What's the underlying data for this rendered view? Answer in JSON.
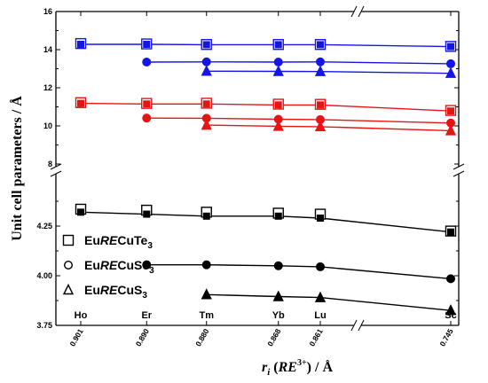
{
  "chart_data": {
    "type": "line",
    "xlabel_parts": {
      "r": "r",
      "i": "i",
      "open": " (",
      "re": "RE",
      "charge": "3+",
      "close": ") / Å"
    },
    "ylabel": "Unit cell parameters / Å",
    "x_ticks": [
      "0.901",
      "0.890",
      "0.880",
      "0.868",
      "0.861",
      "0.745"
    ],
    "x_values": [
      0.901,
      0.89,
      0.88,
      0.868,
      0.861,
      0.745
    ],
    "categories": [
      "Ho",
      "Er",
      "Tm",
      "Yb",
      "Lu",
      "Sc"
    ],
    "x_axis_break": "between 0.861 and 0.745",
    "upper_panel": {
      "ylim": [
        8,
        16
      ],
      "y_ticks": [
        "8",
        "10",
        "12",
        "14",
        "16"
      ],
      "y_tick_values": [
        8,
        10,
        12,
        14,
        16
      ]
    },
    "lower_panel": {
      "ylim": [
        3.75,
        4.4
      ],
      "y_ticks": [
        "3.75",
        "4.00",
        "4.25"
      ],
      "y_tick_values": [
        3.75,
        4.0,
        4.25
      ]
    },
    "legend": {
      "items": [
        {
          "marker": "square",
          "prefix": "Eu",
          "re": "RE",
          "rest": "CuTe",
          "sub": "3"
        },
        {
          "marker": "circle",
          "prefix": "Eu",
          "re": "RE",
          "rest": "CuSe",
          "sub": "3"
        },
        {
          "marker": "triangle",
          "prefix": "Eu",
          "re": "RE",
          "rest": "CuS",
          "sub": "3"
        }
      ]
    },
    "colors": {
      "blue": "#1515e6",
      "red": "#e61515",
      "black": "#000000"
    },
    "series": [
      {
        "panel": "upper",
        "color": "blue",
        "marker": "square",
        "points": [
          [
            0.901,
            14.28,
            14.32
          ],
          [
            0.89,
            14.28,
            14.3
          ],
          [
            0.88,
            14.26,
            14.27
          ],
          [
            0.868,
            14.26,
            14.27
          ],
          [
            0.861,
            14.26,
            14.27
          ],
          [
            0.745,
            14.16,
            14.17
          ]
        ]
      },
      {
        "panel": "upper",
        "color": "blue",
        "marker": "circle",
        "points": [
          [
            0.89,
            13.35
          ],
          [
            0.88,
            13.36
          ],
          [
            0.868,
            13.35
          ],
          [
            0.861,
            13.36
          ],
          [
            0.745,
            13.26
          ]
        ]
      },
      {
        "panel": "upper",
        "color": "blue",
        "marker": "triangle",
        "points": [
          [
            0.88,
            12.87
          ],
          [
            0.868,
            12.86
          ],
          [
            0.861,
            12.85
          ],
          [
            0.745,
            12.76
          ]
        ]
      },
      {
        "panel": "upper",
        "color": "red",
        "marker": "square",
        "points": [
          [
            0.901,
            11.18,
            11.22
          ],
          [
            0.89,
            11.15,
            11.18
          ],
          [
            0.88,
            11.15,
            11.19
          ],
          [
            0.868,
            11.1,
            11.14
          ],
          [
            0.861,
            11.1,
            11.13
          ],
          [
            0.745,
            10.78,
            10.81
          ]
        ]
      },
      {
        "panel": "upper",
        "color": "red",
        "marker": "circle",
        "points": [
          [
            0.89,
            10.41
          ],
          [
            0.88,
            10.4
          ],
          [
            0.868,
            10.35
          ],
          [
            0.861,
            10.33
          ],
          [
            0.745,
            10.15
          ]
        ]
      },
      {
        "panel": "upper",
        "color": "red",
        "marker": "triangle",
        "points": [
          [
            0.88,
            10.04
          ],
          [
            0.868,
            9.98
          ],
          [
            0.861,
            9.96
          ],
          [
            0.745,
            9.75
          ]
        ]
      },
      {
        "panel": "lower",
        "color": "black",
        "marker": "square",
        "points": [
          [
            0.901,
            4.32,
            4.335
          ],
          [
            0.89,
            4.31,
            4.33
          ],
          [
            0.88,
            4.3,
            4.32
          ],
          [
            0.868,
            4.3,
            4.315
          ],
          [
            0.861,
            4.29,
            4.31
          ],
          [
            0.745,
            4.22,
            4.225
          ]
        ]
      },
      {
        "panel": "lower",
        "color": "black",
        "marker": "circle",
        "points": [
          [
            0.89,
            4.055
          ],
          [
            0.88,
            4.055
          ],
          [
            0.868,
            4.05
          ],
          [
            0.861,
            4.045
          ],
          [
            0.745,
            3.985
          ]
        ]
      },
      {
        "panel": "lower",
        "color": "black",
        "marker": "triangle",
        "points": [
          [
            0.88,
            3.905
          ],
          [
            0.868,
            3.895
          ],
          [
            0.861,
            3.89
          ],
          [
            0.745,
            3.825
          ]
        ]
      }
    ]
  }
}
